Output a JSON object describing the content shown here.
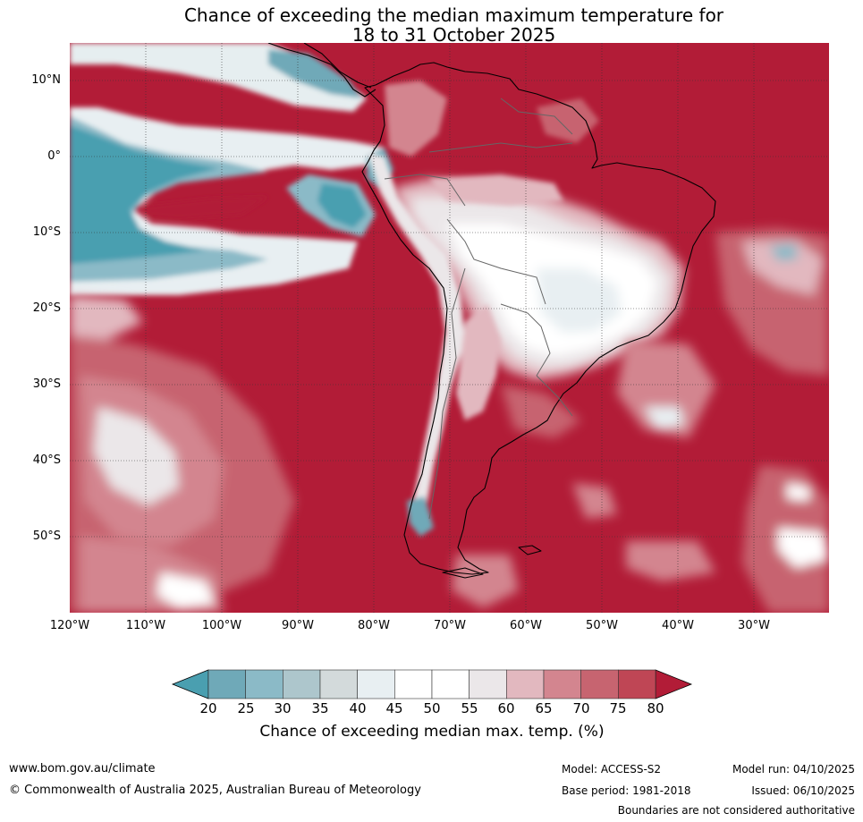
{
  "title": {
    "line1": "Chance of exceeding the median maximum temperature for",
    "line2": "18 to 31 October 2025"
  },
  "map": {
    "region": "South America",
    "lat_labels": [
      "10°N",
      "0°",
      "10°S",
      "20°S",
      "30°S",
      "40°S",
      "50°S"
    ],
    "lon_labels": [
      "120°W",
      "110°W",
      "100°W",
      "90°W",
      "80°W",
      "70°W",
      "60°W",
      "50°W",
      "40°W",
      "30°W"
    ],
    "lat_ticks_deg": [
      10,
      0,
      -10,
      -20,
      -30,
      -40,
      -50
    ],
    "lon_ticks_deg": [
      -120,
      -110,
      -100,
      -90,
      -80,
      -70,
      -60,
      -50,
      -40,
      -30
    ],
    "dominant_category": "above 80% (warm)"
  },
  "colorbar": {
    "ticks": [
      "20",
      "25",
      "30",
      "35",
      "40",
      "45",
      "50",
      "55",
      "60",
      "65",
      "70",
      "75",
      "80"
    ],
    "colors": [
      "#4a9fb0",
      "#6fa9b8",
      "#8bbac7",
      "#adc6cc",
      "#d3dadb",
      "#e8eff2",
      "#ffffff",
      "#ffffff",
      "#ebe7e9",
      "#e2b8bf",
      "#d3858f",
      "#c76470",
      "#bf4655",
      "#b21c37"
    ],
    "title": "Chance of exceeding median max. temp. (%)"
  },
  "footer": {
    "website": "www.bom.gov.au/climate",
    "copyright": "© Commonwealth of Australia 2025, Australian Bureau of Meteorology",
    "model": "Model: ACCESS-S2",
    "base_period": "Base period: 1981-2018",
    "model_run": "Model run: 04/10/2025",
    "issued": "Issued: 06/10/2025",
    "disclaimer": "Boundaries are not considered authoritative"
  }
}
